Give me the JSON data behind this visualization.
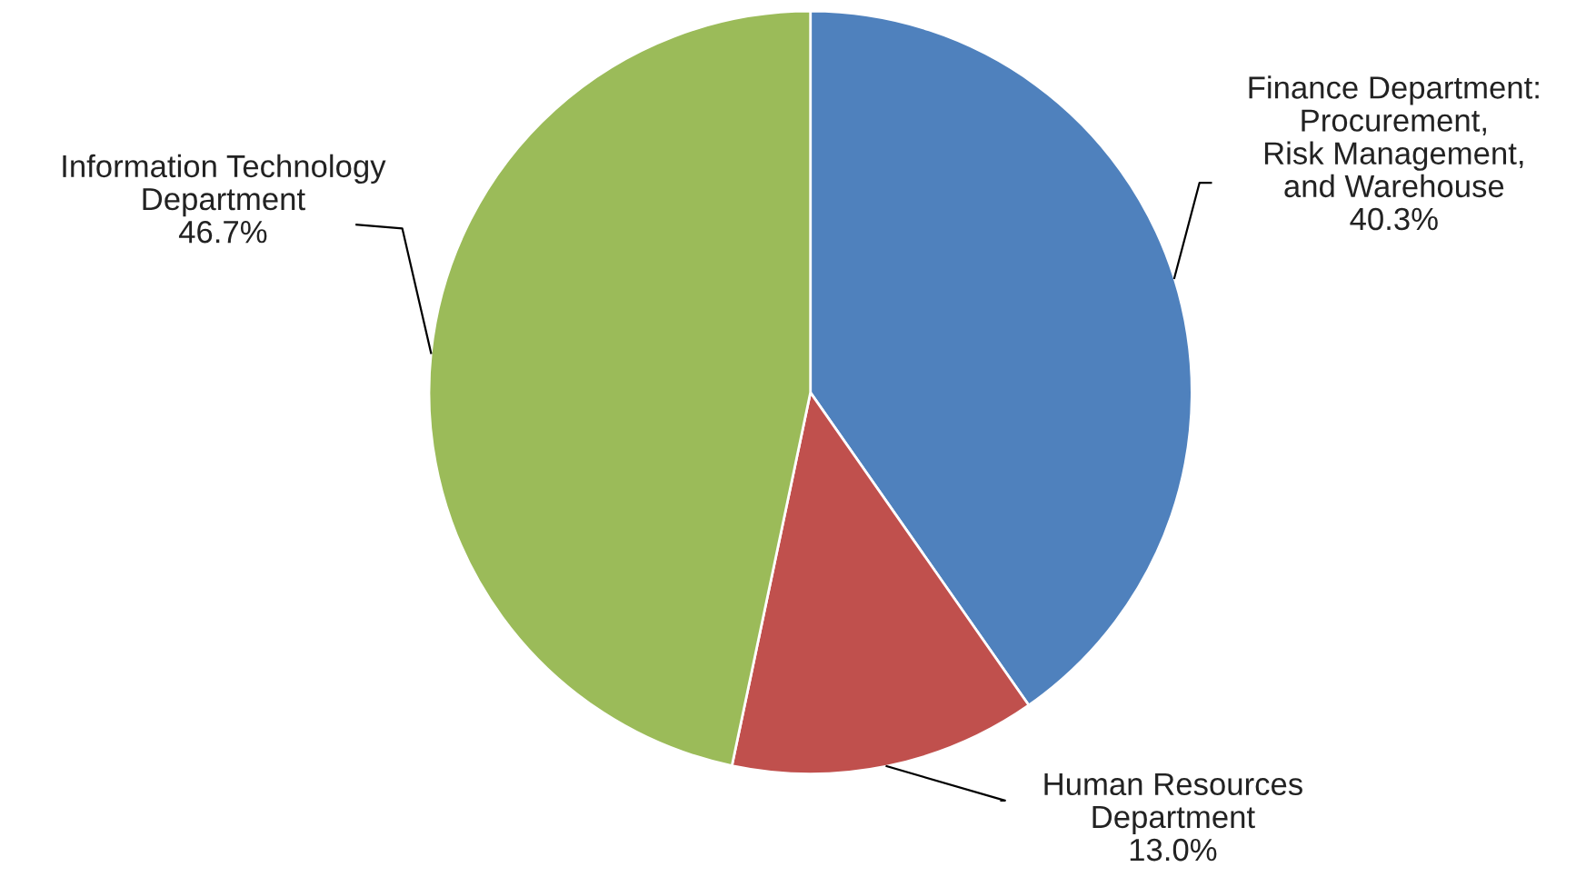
{
  "chart_data": {
    "type": "pie",
    "categories": [
      "Finance Department:\nProcurement,\nRisk Management,\nand Warehouse",
      "Human Resources\nDepartment",
      "Information Technology\nDepartment"
    ],
    "values": [
      40.3,
      13.0,
      46.7
    ],
    "value_labels": [
      "40.3%",
      "13.0%",
      "46.7%"
    ],
    "colors": [
      "#4f81bd",
      "#c0504d",
      "#9bbb59"
    ],
    "legend": false
  }
}
